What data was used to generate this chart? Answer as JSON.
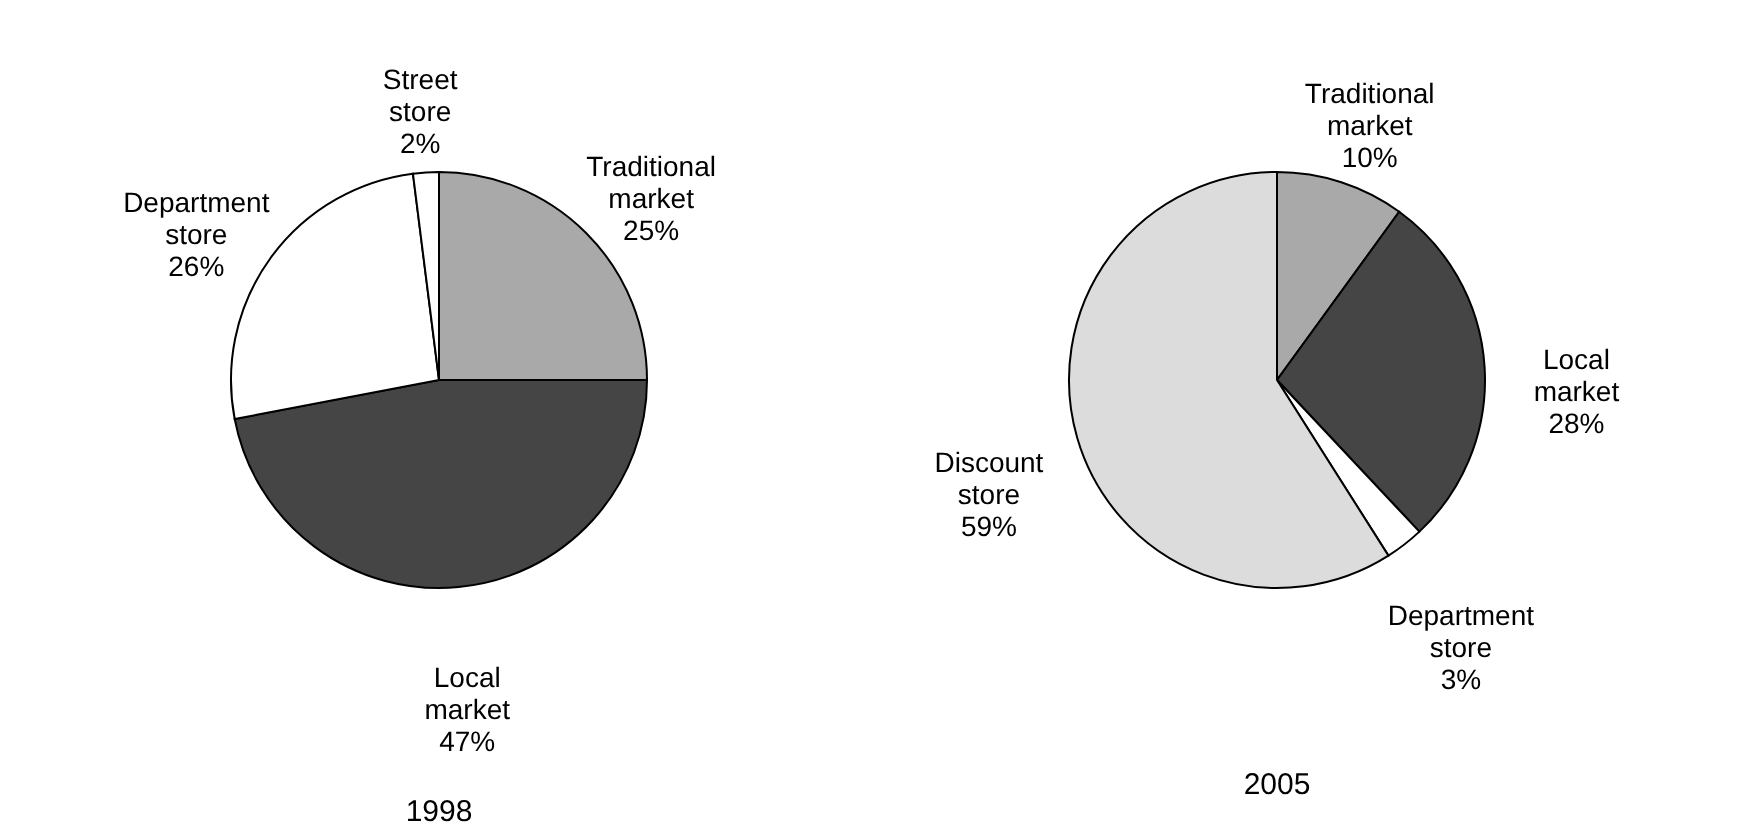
{
  "chart_data": [
    {
      "type": "pie",
      "title": "1998",
      "categories": [
        "Traditional market",
        "Local market",
        "Department store",
        "Street store"
      ],
      "values": [
        25,
        47,
        26,
        2
      ],
      "colors": [
        "#a9a9a9",
        "#454545",
        "#ffffff",
        "#ffffff"
      ],
      "value_labels": [
        "25%",
        "47%",
        "26%",
        "2%"
      ]
    },
    {
      "type": "pie",
      "title": "2005",
      "categories": [
        "Traditional market",
        "Local market",
        "Department store",
        "Discount store"
      ],
      "values": [
        10,
        28,
        3,
        59
      ],
      "colors": [
        "#a9a9a9",
        "#454545",
        "#ffffff",
        "#dcdcdc"
      ],
      "value_labels": [
        "10%",
        "28%",
        "3%",
        "59%"
      ]
    }
  ]
}
